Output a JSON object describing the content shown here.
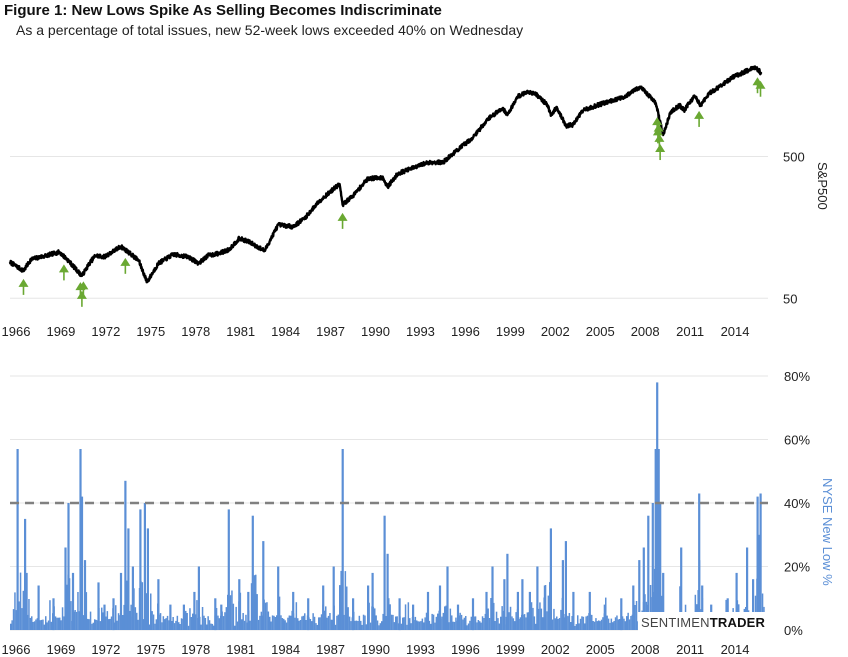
{
  "header": {
    "title": "Figure 1: New Lows Spike As Selling Becomes Indiscriminate",
    "subtitle": "As a percentage of total issues, new 52-week lows exceeded 40% on Wednesday"
  },
  "watermark": {
    "text_a": "SENTIMEN",
    "text_b": "TRADER"
  },
  "colors": {
    "price": "#000000",
    "signal": "#6aa832",
    "bars": "#5b8fd6",
    "dashed": "#808080",
    "bar_axis_label": "#5b8fd6"
  },
  "chart_data": [
    {
      "type": "line",
      "name": "top-price-panel",
      "ylabel": "S&P500",
      "yscale": "log",
      "yticks": [
        50,
        500
      ],
      "ytick_labels": [
        "50",
        "500"
      ],
      "xlim": [
        1965.6,
        2016.2
      ],
      "ylim": [
        40,
        2400
      ],
      "xtick_labels": [
        "1966",
        "1969",
        "1972",
        "1975",
        "1978",
        "1981",
        "1984",
        "1987",
        "1990",
        "1993",
        "1996",
        "1999",
        "2002",
        "2005",
        "2008",
        "2011",
        "2014"
      ],
      "xtick_values": [
        1966,
        1969,
        1972,
        1975,
        1978,
        1981,
        1984,
        1987,
        1990,
        1993,
        1996,
        1999,
        2002,
        2005,
        2008,
        2011,
        2014
      ],
      "series": [
        {
          "x": [
            1965.6,
            1966.5,
            1967.0,
            1968.0,
            1968.9,
            1969.5,
            1970.4,
            1970.9,
            1971.3,
            1971.9,
            1973.0,
            1973.6,
            1974.2,
            1974.75,
            1975.5,
            1976.5,
            1977.5,
            1978.2,
            1978.8,
            1979.6,
            1980.2,
            1980.9,
            1981.5,
            1982.6,
            1983.5,
            1984.5,
            1985.3,
            1986.2,
            1987.6,
            1987.8,
            1988.5,
            1989.5,
            1990.5,
            1990.8,
            1991.5,
            1992.5,
            1993.5,
            1994.5,
            1995.5,
            1996.5,
            1997.5,
            1998.5,
            1998.8,
            1999.5,
            2000.2,
            2000.7,
            2001.5,
            2001.7,
            2002.1,
            2002.7,
            2003.2,
            2003.8,
            2004.5,
            2005.5,
            2006.5,
            2007.5,
            2007.8,
            2008.4,
            2008.7,
            2009.2,
            2009.7,
            2010.3,
            2010.6,
            2011.3,
            2011.7,
            2012.3,
            2013.0,
            2013.8,
            2014.5,
            2015.0,
            2015.4,
            2015.55,
            2015.75
          ],
          "values": [
            90,
            78,
            94,
            100,
            106,
            92,
            72,
            88,
            100,
            98,
            116,
            104,
            92,
            65,
            88,
            102,
            98,
            88,
            100,
            104,
            110,
            132,
            126,
            108,
            165,
            160,
            185,
            240,
            320,
            228,
            265,
            350,
            355,
            305,
            380,
            415,
            455,
            455,
            560,
            680,
            920,
            1100,
            980,
            1330,
            1440,
            1380,
            1150,
            970,
            1120,
            820,
            840,
            1050,
            1120,
            1220,
            1300,
            1520,
            1500,
            1300,
            1200,
            710,
            1030,
            1150,
            1060,
            1340,
            1150,
            1400,
            1570,
            1800,
            1950,
            2060,
            2100,
            2050,
            1920
          ]
        }
      ],
      "signals_x": [
        1966.5,
        1969.2,
        1970.3,
        1970.4,
        1970.5,
        1973.3,
        1987.8,
        2008.8,
        2008.85,
        2008.9,
        2008.95,
        2009.0,
        2011.6,
        2015.5,
        2015.7
      ]
    },
    {
      "type": "bar",
      "name": "bottom-newlows-panel",
      "ylabel": "NYSE New Low %",
      "ylim": [
        0,
        80
      ],
      "yticks": [
        0,
        20,
        40,
        60,
        80
      ],
      "ytick_labels": [
        "0%",
        "20%",
        "40%",
        "60%",
        "80%"
      ],
      "threshold": 40,
      "xlim": [
        1965.6,
        2016.2
      ],
      "xtick_labels": [
        "1966",
        "1969",
        "1972",
        "1975",
        "1978",
        "1981",
        "1984",
        "1987",
        "1990",
        "1993",
        "1996",
        "1999",
        "2002",
        "2005",
        "2008",
        "2011",
        "2014"
      ],
      "xtick_values": [
        1966,
        1969,
        1972,
        1975,
        1978,
        1981,
        1984,
        1987,
        1990,
        1993,
        1996,
        1999,
        2002,
        2005,
        2008,
        2011,
        2014
      ],
      "spikes": {
        "x": [
          1966.1,
          1966.6,
          1966.7,
          1967.5,
          1968.5,
          1969.3,
          1969.5,
          1969.8,
          1970.3,
          1970.4,
          1970.6,
          1971.5,
          1971.9,
          1972.5,
          1973.0,
          1973.3,
          1973.5,
          1973.8,
          1974.3,
          1974.6,
          1974.8,
          1975.5,
          1976.3,
          1977.2,
          1977.9,
          1978.2,
          1979.3,
          1979.7,
          1980.2,
          1980.9,
          1981.5,
          1981.8,
          1982.5,
          1983.5,
          1984.5,
          1985.5,
          1986.5,
          1987.2,
          1987.8,
          1988.5,
          1989.5,
          1989.8,
          1990.6,
          1990.8,
          1991.6,
          1992.5,
          1993.5,
          1994.3,
          1994.8,
          1995.5,
          1996.5,
          1997.4,
          1997.8,
          1998.6,
          1998.8,
          1999.5,
          1999.8,
          2000.3,
          2000.8,
          2001.3,
          2001.7,
          2002.5,
          2002.7,
          2003.2,
          2004.3,
          2005.3,
          2006.4,
          2007.2,
          2007.6,
          2007.9,
          2008.2,
          2008.5,
          2008.7,
          2008.8,
          2008.9,
          2009.0,
          2009.2,
          2010.4,
          2011.6,
          2011.8,
          2012.4,
          2013.5,
          2014.1,
          2014.8,
          2015.2,
          2015.5,
          2015.6,
          2015.7
        ],
        "values": [
          57,
          35,
          18,
          14,
          10,
          26,
          40,
          18,
          57,
          42,
          22,
          15,
          8,
          10,
          18,
          47,
          32,
          20,
          38,
          40,
          32,
          16,
          8,
          8,
          12,
          20,
          10,
          8,
          38,
          16,
          12,
          36,
          28,
          20,
          12,
          10,
          14,
          20,
          57,
          10,
          14,
          18,
          36,
          24,
          10,
          8,
          12,
          14,
          20,
          8,
          10,
          12,
          20,
          16,
          24,
          12,
          16,
          12,
          20,
          14,
          32,
          22,
          28,
          12,
          12,
          8,
          10,
          14,
          22,
          26,
          36,
          40,
          57,
          78,
          57,
          40,
          18,
          26,
          43,
          14,
          8,
          10,
          18,
          26,
          16,
          42,
          30,
          43
        ]
      }
    }
  ]
}
